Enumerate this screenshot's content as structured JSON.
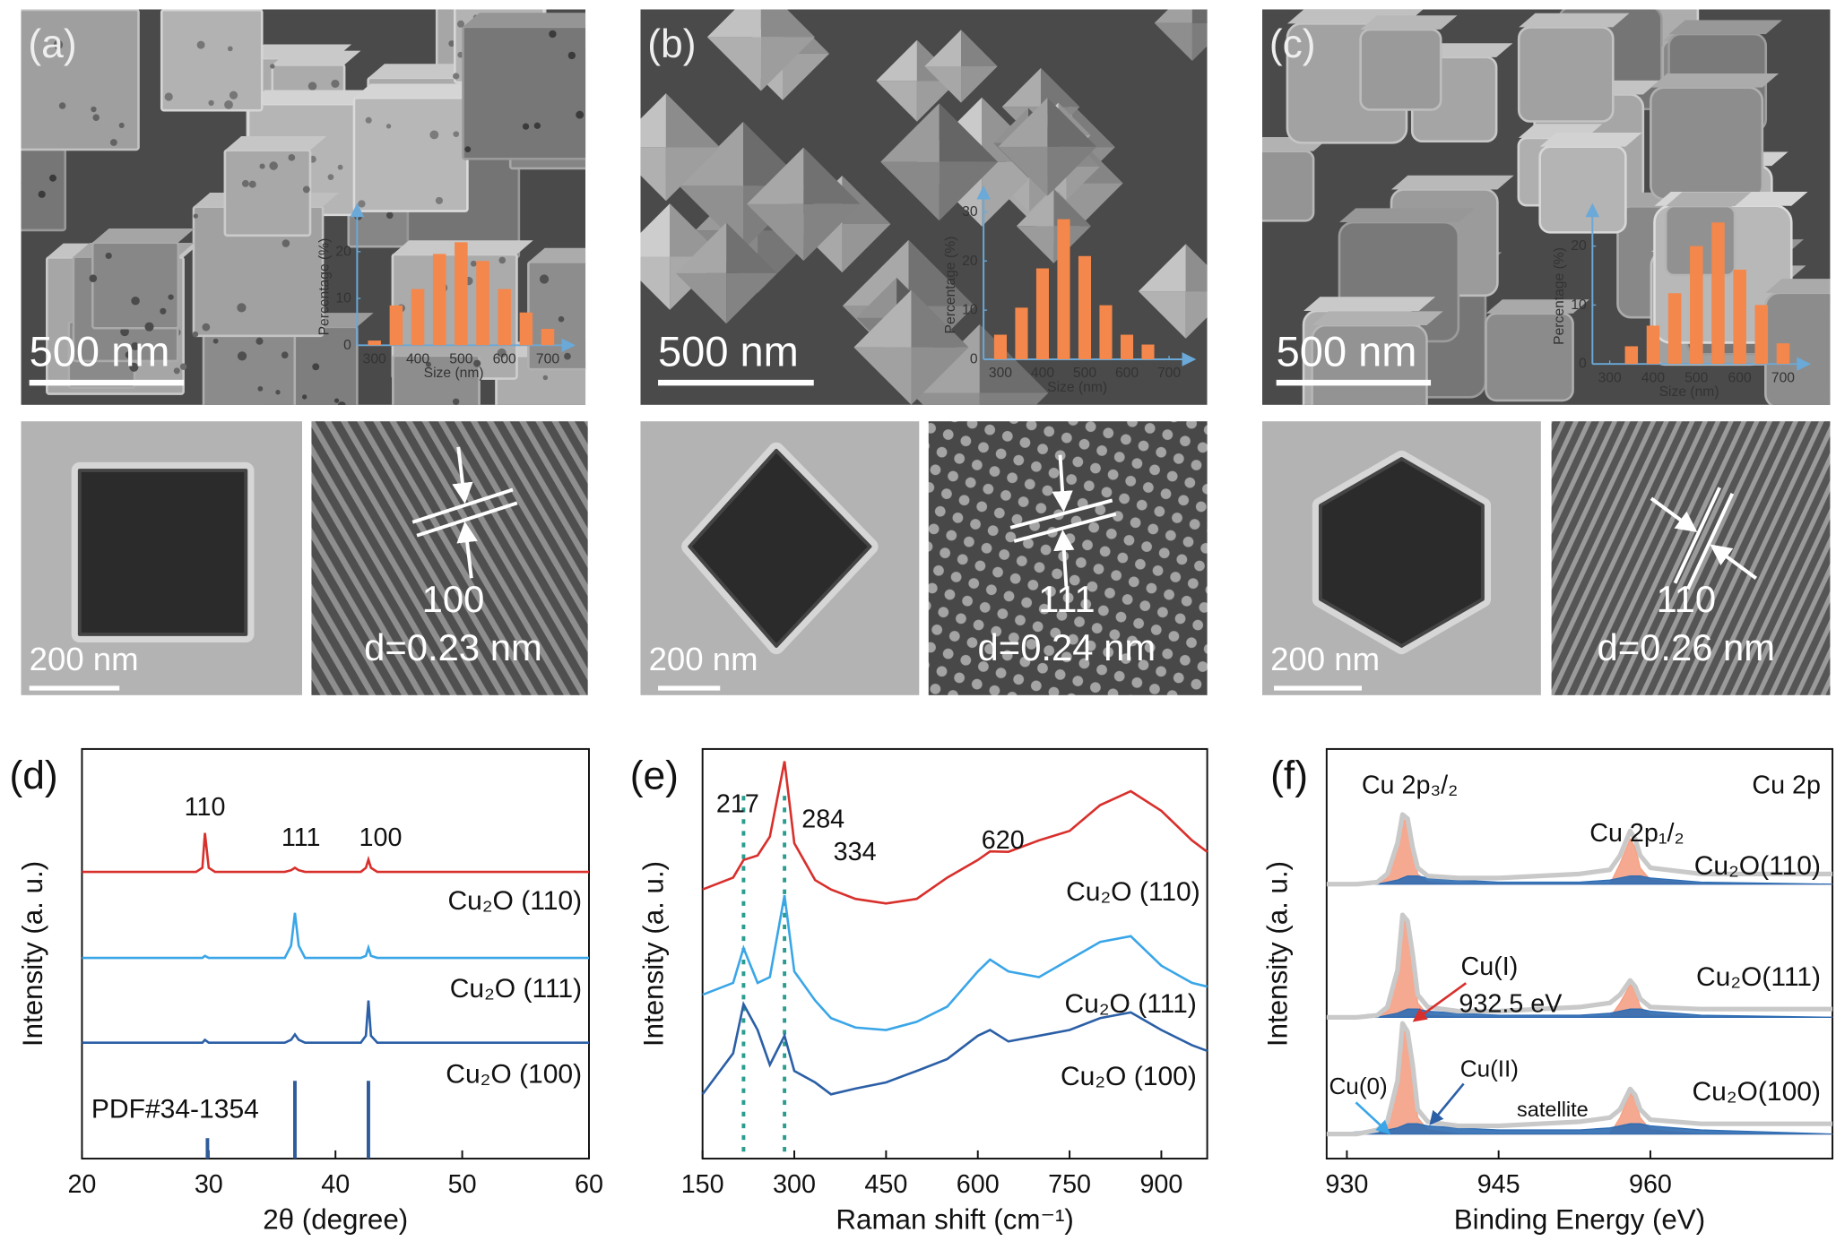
{
  "panels": [
    {
      "label": "(a)",
      "sem_scale": "500 nm",
      "tem_scale": "200 nm",
      "plane": "100",
      "spacing": "d=0.23 nm"
    },
    {
      "label": "(b)",
      "sem_scale": "500 nm",
      "tem_scale": "200 nm",
      "plane": "111",
      "spacing": "d=0.24 nm"
    },
    {
      "label": "(c)",
      "sem_scale": "500 nm",
      "tem_scale": "200 nm",
      "plane": "110",
      "spacing": "d=0.26 nm"
    }
  ],
  "chart_data": [
    {
      "type": "bar",
      "x_label": "Size (nm)",
      "y_label": "Percentage (%)",
      "color": "#f4874b",
      "x": [
        300,
        350,
        400,
        450,
        500,
        550,
        600,
        650,
        700
      ],
      "values": [
        1,
        8.5,
        12,
        19.5,
        22,
        18,
        12,
        7,
        3.5
      ],
      "xlim": [
        260,
        760
      ],
      "ylim": [
        0,
        30
      ],
      "xticks": [
        300,
        400,
        500,
        600,
        700
      ],
      "yticks": [
        0,
        10,
        20
      ]
    },
    {
      "type": "bar",
      "x_label": "Size (nm)",
      "y_label": "Percentage (%)",
      "color": "#f4874b",
      "x": [
        300,
        350,
        400,
        450,
        500,
        550,
        600,
        650
      ],
      "values": [
        5,
        10.5,
        18.5,
        28.5,
        21,
        11,
        5,
        3
      ],
      "xlim": [
        260,
        760
      ],
      "ylim": [
        0,
        35
      ],
      "xticks": [
        300,
        400,
        500,
        600,
        700
      ],
      "yticks": [
        0,
        10,
        20,
        30
      ]
    },
    {
      "type": "bar",
      "x_label": "Size (nm)",
      "y_label": "Percentage (%)",
      "color": "#f4874b",
      "x": [
        350,
        400,
        450,
        500,
        550,
        600,
        650,
        700
      ],
      "values": [
        3,
        6.5,
        12,
        20,
        24,
        16,
        10,
        3.5
      ],
      "xlim": [
        260,
        760
      ],
      "ylim": [
        0,
        27
      ],
      "xticks": [
        300,
        400,
        500,
        600,
        700
      ],
      "yticks": [
        0,
        10,
        20
      ]
    },
    {
      "type": "line",
      "panel_label": "(d)",
      "x_label": "2θ (degree)",
      "y_label": "Intensity (a. u.)",
      "xlim": [
        20,
        60
      ],
      "xticks": [
        20,
        30,
        40,
        50,
        60
      ],
      "ylim": [
        0,
        100
      ],
      "annotations": [
        "110",
        "111",
        "100"
      ],
      "x": [
        20,
        25,
        29,
        29.5,
        29.7,
        30,
        30.5,
        36,
        36.5,
        36.8,
        37.1,
        37.6,
        42,
        42.4,
        42.6,
        42.8,
        43.3,
        50,
        55,
        60
      ],
      "series": [
        {
          "name": "Cu₂O (110)",
          "color": "#d8302c",
          "values": [
            70,
            70,
            70,
            71,
            79.5,
            71,
            70,
            70,
            70.4,
            71,
            70.4,
            70,
            70,
            71,
            73,
            71,
            70,
            70,
            70,
            70
          ]
        },
        {
          "name": "Cu₂O (111)",
          "color": "#3aa6e8",
          "values": [
            49,
            49,
            49,
            49,
            49.5,
            49,
            49,
            49,
            52,
            60,
            52,
            49,
            49,
            49.5,
            51.5,
            49.5,
            49,
            49,
            49,
            49
          ]
        },
        {
          "name": "Cu₂O (100)",
          "color": "#2b5fa6",
          "values": [
            28.3,
            28.3,
            28.3,
            28.3,
            29,
            28.3,
            28.3,
            28.3,
            29,
            30.3,
            29,
            28.3,
            28.3,
            30,
            38.6,
            30,
            28.3,
            28.3,
            28.3,
            28.3
          ]
        }
      ],
      "reference": {
        "name": "PDF#34-1354",
        "color": "#2e5c9a",
        "x": [
          29.9,
          36.8,
          42.6
        ],
        "values": [
          5,
          19,
          19
        ]
      }
    },
    {
      "type": "line",
      "panel_label": "(e)",
      "x_label": "Raman shift (cm⁻¹)",
      "y_label": "Intensity (a. u.)",
      "xlim": [
        150,
        975
      ],
      "xticks": [
        150,
        300,
        450,
        600,
        750,
        900
      ],
      "ylim": [
        0,
        100
      ],
      "peak_labels": [
        217,
        284,
        334,
        620
      ],
      "dashed_lines": [
        217,
        284
      ],
      "dashed_color": "#2a9d8f",
      "x": [
        150,
        200,
        217,
        240,
        260,
        284,
        300,
        334,
        360,
        400,
        450,
        500,
        550,
        600,
        620,
        650,
        700,
        750,
        800,
        850,
        900,
        950,
        975
      ],
      "series": [
        {
          "name": "Cu₂O (110)",
          "color": "#d8302c",
          "values": [
            65.7,
            68.6,
            72.9,
            74,
            78.6,
            97,
            77,
            68,
            65.7,
            63.4,
            62.3,
            63.4,
            68.6,
            72.9,
            75,
            74.9,
            77.7,
            80,
            86.3,
            89.7,
            84.9,
            77.7,
            74.9
          ]
        },
        {
          "name": "Cu₂O (111)",
          "color": "#3aa6e8",
          "values": [
            40,
            42.9,
            51.4,
            42.9,
            44.3,
            64.3,
            45.7,
            38.6,
            34.3,
            32,
            31.4,
            33.4,
            37.1,
            45.7,
            48.6,
            45.7,
            44.3,
            48.6,
            52.9,
            54.3,
            47.1,
            42.9,
            42
          ]
        },
        {
          "name": "Cu₂O (100)",
          "color": "#2b5fa6",
          "values": [
            15.7,
            25.7,
            37.7,
            31.4,
            22.9,
            30,
            21.4,
            18.6,
            15.7,
            17.1,
            18.6,
            21.4,
            24.3,
            30,
            31.4,
            28.6,
            30,
            31.4,
            34.3,
            35.7,
            31.4,
            27.7,
            26.3
          ]
        }
      ]
    },
    {
      "type": "xps",
      "panel_label": "(f)",
      "x_label": "Binding Energy (eV)",
      "y_label": "Intensity (a. u.)",
      "xlim": [
        928,
        978
      ],
      "xticks": [
        930,
        945,
        960
      ],
      "ylim": [
        0,
        100
      ],
      "annotations": [
        "Cu 2p₃/₂",
        "Cu 2p₁/₂",
        "Cu 2p",
        "Cu(I)",
        "932.5 eV",
        "Cu(0)",
        "Cu(II)",
        "satellite"
      ],
      "x": [
        928,
        931,
        933,
        934,
        935,
        935.5,
        936,
        936.5,
        937,
        938,
        941,
        945,
        949,
        953,
        956,
        957,
        958,
        958.5,
        959,
        960,
        965,
        978
      ],
      "series": [
        {
          "name": "Cu₂O(110)",
          "color": "#c9c9c9",
          "values": [
            67,
            67,
            67.5,
            69.5,
            77,
            84,
            83,
            76,
            71,
            69,
            68.5,
            68.5,
            69,
            69.5,
            70.5,
            74,
            80,
            78,
            74,
            71,
            69.5,
            69.5
          ],
          "components": [
            {
              "color": "#f4a084",
              "values": [
                67,
                67,
                67,
                68.5,
                76,
                83,
                82,
                75,
                69.5,
                67.5,
                67,
                67,
                67,
                67,
                67,
                72,
                78,
                76,
                71,
                68,
                67,
                67
              ]
            },
            {
              "color": "#2f6cb3",
              "values": [
                67,
                67,
                67,
                67.5,
                68,
                68.5,
                69,
                69,
                69,
                68.5,
                68,
                67.5,
                67.5,
                67.5,
                68,
                68.5,
                69,
                69,
                69,
                68.5,
                67.5,
                67
              ]
            }
          ]
        },
        {
          "name": "Cu₂O(111)",
          "color": "#c9c9c9",
          "values": [
            34.5,
            34.5,
            35,
            37,
            46,
            59.5,
            58,
            50,
            40,
            37,
            36,
            36,
            36.5,
            37,
            38,
            40,
            43.5,
            42,
            39,
            37,
            36.5,
            36.5
          ],
          "components": [
            {
              "color": "#f4a084",
              "values": [
                34.5,
                34.5,
                34.5,
                36,
                45,
                58.5,
                57,
                49,
                38,
                35,
                34.5,
                34.5,
                34.5,
                34.5,
                34.5,
                38,
                42.5,
                41,
                37,
                35,
                34.5,
                34.5
              ]
            },
            {
              "color": "#2f6cb3",
              "values": [
                34.5,
                34.5,
                34.5,
                35,
                35.5,
                36,
                36.5,
                36.5,
                36.5,
                36,
                35.5,
                35,
                35,
                35,
                35.5,
                36,
                36.5,
                36.5,
                36.5,
                36,
                35,
                34.5
              ]
            }
          ]
        },
        {
          "name": "Cu₂O(100)",
          "color": "#c9c9c9",
          "values": [
            6,
            6,
            7,
            9,
            19,
            33,
            31,
            23,
            12,
            9,
            8,
            8,
            8.5,
            9,
            10,
            12,
            17,
            15.5,
            12,
            9.5,
            8.5,
            8.5
          ],
          "components": [
            {
              "color": "#f4a084",
              "values": [
                6,
                6,
                6,
                8,
                18,
                32,
                30,
                22,
                10,
                7,
                6,
                6,
                6,
                6,
                6,
                10,
                16,
                14.5,
                10,
                7,
                6,
                6
              ]
            },
            {
              "color": "#2f6cb3",
              "values": [
                6,
                6.5,
                7,
                7,
                7.5,
                8,
                8.5,
                8.5,
                8.5,
                8,
                7.5,
                7,
                7,
                7,
                7.5,
                8,
                8.5,
                8.5,
                8.5,
                8,
                7,
                6
              ]
            }
          ]
        }
      ]
    }
  ]
}
